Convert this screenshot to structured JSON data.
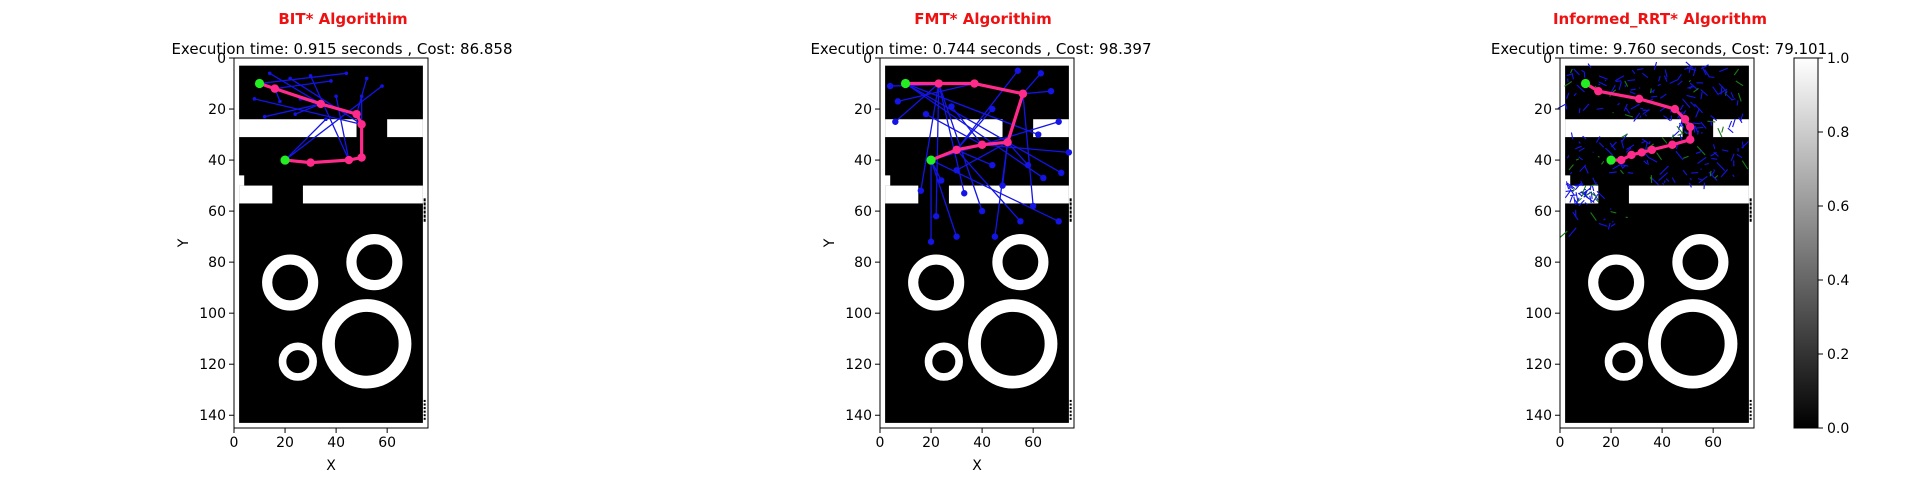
{
  "colors": {
    "title": "#ee1111",
    "path": "#ff2a8a",
    "tree": "#1414e6",
    "tree_secondary": "#1a7a1a",
    "start_goal": "#22ee22",
    "obstacle": "#000000",
    "free": "#ffffff"
  },
  "chart_data": [
    {
      "type": "scatter",
      "panel": "bit",
      "title": "BIT* Algorithim",
      "subtitle": "Execution time: 0.915 seconds , Cost: 86.858",
      "xlabel": "X",
      "ylabel": "Y",
      "xlim": [
        0,
        76
      ],
      "ylim": [
        145,
        0
      ],
      "xticks": [
        "0",
        "20",
        "40",
        "60"
      ],
      "yticks": [
        "0",
        "20",
        "40",
        "60",
        "80",
        "100",
        "120",
        "140"
      ],
      "start": [
        10,
        10
      ],
      "goal": [
        20,
        40
      ],
      "path": [
        [
          10,
          10
        ],
        [
          16,
          12
        ],
        [
          34,
          18
        ],
        [
          48,
          22
        ],
        [
          50,
          26
        ],
        [
          50,
          39
        ],
        [
          45,
          40
        ],
        [
          30,
          41
        ],
        [
          20,
          40
        ]
      ],
      "tree_seeds": [
        [
          14,
          6
        ],
        [
          22,
          8
        ],
        [
          30,
          7
        ],
        [
          38,
          9
        ],
        [
          44,
          6
        ],
        [
          52,
          8
        ],
        [
          58,
          11
        ],
        [
          8,
          16
        ],
        [
          18,
          17
        ],
        [
          26,
          16
        ],
        [
          40,
          15
        ],
        [
          50,
          15
        ],
        [
          24,
          22
        ],
        [
          12,
          23
        ],
        [
          36,
          24
        ]
      ]
    },
    {
      "type": "scatter",
      "panel": "fmt",
      "title": "FMT* Algorithim",
      "subtitle": "Execution time: 0.744 seconds , Cost: 98.397",
      "xlabel": "X",
      "ylabel": "Y",
      "xlim": [
        0,
        76
      ],
      "ylim": [
        145,
        0
      ],
      "xticks": [
        "0",
        "20",
        "40",
        "60"
      ],
      "yticks": [
        "0",
        "20",
        "40",
        "60",
        "80",
        "100",
        "120",
        "140"
      ],
      "start": [
        10,
        10
      ],
      "goal": [
        20,
        40
      ],
      "path": [
        [
          10,
          10
        ],
        [
          23,
          10
        ],
        [
          37,
          10
        ],
        [
          56,
          14
        ],
        [
          50,
          33
        ],
        [
          40,
          34
        ],
        [
          30,
          36
        ],
        [
          20,
          40
        ]
      ],
      "tree_seeds": [
        [
          4,
          11
        ],
        [
          7,
          17
        ],
        [
          6,
          25
        ],
        [
          18,
          22
        ],
        [
          28,
          19
        ],
        [
          44,
          20
        ],
        [
          54,
          5
        ],
        [
          63,
          6
        ],
        [
          67,
          13
        ],
        [
          70,
          25
        ],
        [
          74,
          37
        ],
        [
          71,
          45
        ],
        [
          64,
          47
        ],
        [
          58,
          42
        ],
        [
          62,
          30
        ],
        [
          44,
          42
        ],
        [
          30,
          44
        ],
        [
          24,
          48
        ],
        [
          16,
          52
        ],
        [
          33,
          53
        ],
        [
          48,
          50
        ],
        [
          60,
          58
        ],
        [
          40,
          60
        ],
        [
          22,
          62
        ],
        [
          20,
          72
        ],
        [
          55,
          64
        ],
        [
          70,
          64
        ],
        [
          30,
          70
        ],
        [
          45,
          70
        ]
      ]
    },
    {
      "type": "scatter",
      "panel": "informed",
      "title": "Informed_RRT* Algorithm",
      "subtitle": "Execution time: 9.760 seconds, Cost: 79.101",
      "xlabel": "",
      "ylabel": "",
      "xlim": [
        0,
        76
      ],
      "ylim": [
        145,
        0
      ],
      "xticks": [
        "0",
        "20",
        "40",
        "60"
      ],
      "yticks": [
        "0",
        "20",
        "40",
        "60",
        "80",
        "100",
        "120",
        "140"
      ],
      "start": [
        10,
        10
      ],
      "goal": [
        20,
        40
      ],
      "path": [
        [
          10,
          10
        ],
        [
          15,
          13
        ],
        [
          31,
          16
        ],
        [
          45,
          20
        ],
        [
          49,
          24
        ],
        [
          51,
          27
        ],
        [
          51,
          32
        ],
        [
          44,
          34
        ],
        [
          36,
          36
        ],
        [
          32,
          37
        ],
        [
          28,
          38
        ],
        [
          24,
          40
        ],
        [
          20,
          40
        ]
      ],
      "colorbar": {
        "min": 0.0,
        "max": 1.0,
        "ticks": [
          "0.0",
          "0.2",
          "0.4",
          "0.6",
          "0.8",
          "1.0"
        ]
      }
    }
  ]
}
